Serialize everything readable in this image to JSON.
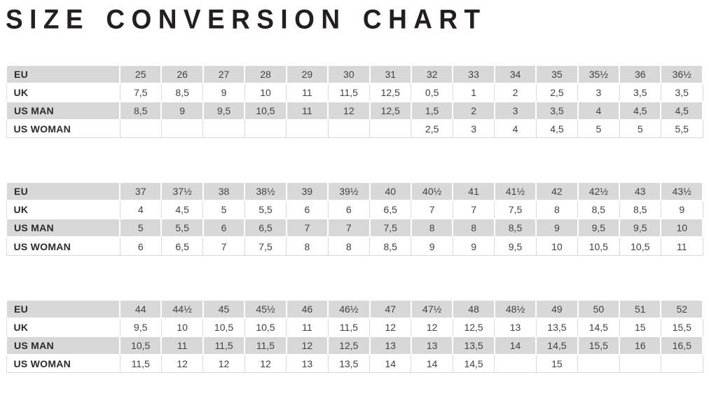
{
  "title": "SIZE CONVERSION CHART",
  "colors": {
    "shaded_row_bg": "#d8d8d8",
    "plain_row_bg": "#ffffff",
    "cell_border": "#d9d9d9",
    "value_text": "#414141",
    "label_text": "#2b2b2b",
    "title_text": "#231f20"
  },
  "tables": [
    {
      "name": "sizes-25-to-36half",
      "rows": [
        {
          "label": "EU",
          "values": [
            "25",
            "26",
            "27",
            "28",
            "29",
            "30",
            "31",
            "32",
            "33",
            "34",
            "35",
            "35½",
            "36",
            "36½"
          ]
        },
        {
          "label": "UK",
          "values": [
            "7,5",
            "8,5",
            "9",
            "10",
            "11",
            "11,5",
            "12,5",
            "0,5",
            "1",
            "2",
            "2,5",
            "3",
            "3,5",
            "3,5"
          ]
        },
        {
          "label": "US MAN",
          "values": [
            "8,5",
            "9",
            "9,5",
            "10,5",
            "11",
            "12",
            "12,5",
            "1,5",
            "2",
            "3",
            "3,5",
            "4",
            "4,5",
            "4,5"
          ]
        },
        {
          "label": "US WOMAN",
          "values": [
            "",
            "",
            "",
            "",
            "",
            "",
            "",
            "2,5",
            "3",
            "4",
            "4,5",
            "5",
            "5",
            "5,5"
          ]
        }
      ]
    },
    {
      "name": "sizes-37-to-43half",
      "rows": [
        {
          "label": "EU",
          "values": [
            "37",
            "37½",
            "38",
            "38½",
            "39",
            "39½",
            "40",
            "40½",
            "41",
            "41½",
            "42",
            "42½",
            "43",
            "43½"
          ]
        },
        {
          "label": "UK",
          "values": [
            "4",
            "4,5",
            "5",
            "5,5",
            "6",
            "6",
            "6,5",
            "7",
            "7",
            "7,5",
            "8",
            "8,5",
            "8,5",
            "9"
          ]
        },
        {
          "label": "US MAN",
          "values": [
            "5",
            "5,5",
            "6",
            "6,5",
            "7",
            "7",
            "7,5",
            "8",
            "8",
            "8,5",
            "9",
            "9,5",
            "9,5",
            "10"
          ]
        },
        {
          "label": "US WOMAN",
          "values": [
            "6",
            "6,5",
            "7",
            "7,5",
            "8",
            "8",
            "8,5",
            "9",
            "9",
            "9,5",
            "10",
            "10,5",
            "10,5",
            "11"
          ]
        }
      ]
    },
    {
      "name": "sizes-44-to-52",
      "rows": [
        {
          "label": "EU",
          "values": [
            "44",
            "44½",
            "45",
            "45½",
            "46",
            "46½",
            "47",
            "47½",
            "48",
            "48½",
            "49",
            "50",
            "51",
            "52"
          ]
        },
        {
          "label": "UK",
          "values": [
            "9,5",
            "10",
            "10,5",
            "10,5",
            "11",
            "11,5",
            "12",
            "12",
            "12,5",
            "13",
            "13,5",
            "14,5",
            "15",
            "15,5"
          ]
        },
        {
          "label": "US MAN",
          "values": [
            "10,5",
            "11",
            "11,5",
            "11,5",
            "12",
            "12,5",
            "13",
            "13",
            "13,5",
            "14",
            "14,5",
            "15,5",
            "16",
            "16,5"
          ]
        },
        {
          "label": "US WOMAN",
          "values": [
            "11,5",
            "12",
            "12",
            "12",
            "13",
            "13,5",
            "14",
            "14",
            "14,5",
            "",
            "15",
            "",
            "",
            ""
          ]
        }
      ]
    }
  ]
}
